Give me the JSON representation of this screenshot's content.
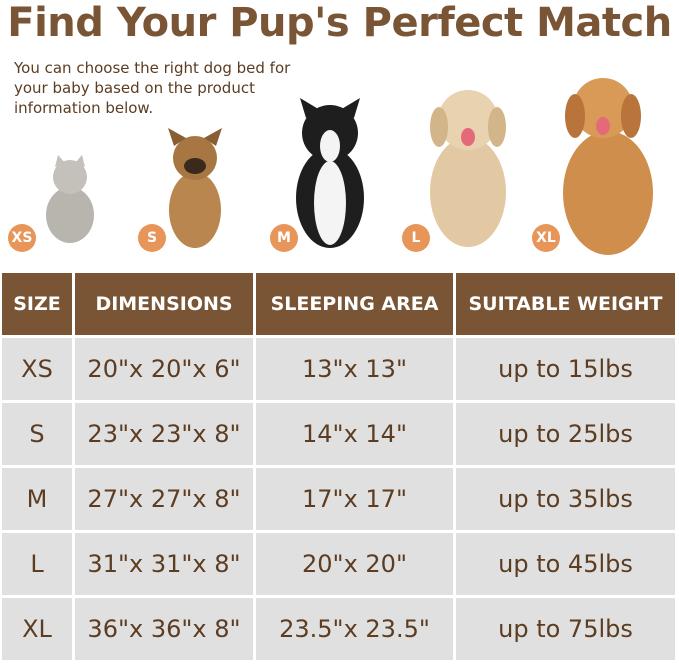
{
  "title": "Find Your Pup's Perfect Match",
  "subtitle": "You can choose the right dog bed for your baby based on the product information below.",
  "pets": [
    {
      "badge": "XS",
      "animal": "cat",
      "color": "#b8b4ae"
    },
    {
      "badge": "S",
      "animal": "french-bulldog",
      "color": "#b9864f"
    },
    {
      "badge": "M",
      "animal": "border-collie",
      "color": "#1e1e1e"
    },
    {
      "badge": "L",
      "animal": "golden-retriever-light",
      "color": "#e2c9a4"
    },
    {
      "badge": "XL",
      "animal": "golden-retriever",
      "color": "#d08e4c"
    }
  ],
  "colors": {
    "header": "#7a5535",
    "text": "#5c3d22",
    "cell": "#e0e0e0",
    "badge": "#e8955a"
  },
  "table": {
    "headers": [
      "SIZE",
      "DIMENSIONS",
      "SLEEPING AREA",
      "SUITABLE WEIGHT"
    ],
    "rows": [
      [
        "XS",
        "20\"x 20\"x 6\"",
        "13\"x 13\"",
        "up to 15lbs"
      ],
      [
        "S",
        "23\"x 23\"x 8\"",
        "14\"x 14\"",
        "up to 25lbs"
      ],
      [
        "M",
        "27\"x 27\"x 8\"",
        "17\"x 17\"",
        "up to 35lbs"
      ],
      [
        "L",
        "31\"x 31\"x 8\"",
        "20\"x 20\"",
        "up to 45lbs"
      ],
      [
        "XL",
        "36\"x 36\"x 8\"",
        "23.5\"x 23.5\"",
        "up to 75lbs"
      ]
    ]
  }
}
